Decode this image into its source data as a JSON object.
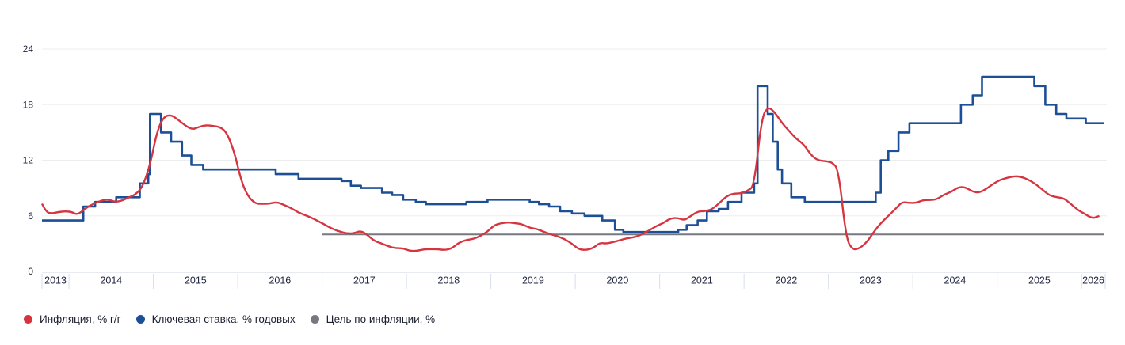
{
  "chart_data": {
    "type": "line",
    "title": "",
    "xlabel": "",
    "ylabel": "",
    "x_domain": [
      2013.68,
      2026.28
    ],
    "ylim": [
      0,
      24
    ],
    "yticks": [
      0,
      6,
      12,
      18,
      24
    ],
    "year_labels": [
      "2013",
      "2014",
      "2015",
      "2016",
      "2017",
      "2018",
      "2019",
      "2020",
      "2021",
      "2022",
      "2023",
      "2024",
      "2025",
      "2026"
    ],
    "grid": "horizontal",
    "legend_position": "bottom-left",
    "series": [
      {
        "name": "Инфляция, % г/г",
        "color": "#d63540",
        "style": "line",
        "points": [
          [
            2013.68,
            7.3
          ],
          [
            2013.73,
            6.4
          ],
          [
            2013.79,
            6.25
          ],
          [
            2013.87,
            6.4
          ],
          [
            2013.96,
            6.5
          ],
          [
            2014.04,
            6.4
          ],
          [
            2014.1,
            6.1
          ],
          [
            2014.21,
            6.9
          ],
          [
            2014.29,
            7.3
          ],
          [
            2014.37,
            7.6
          ],
          [
            2014.46,
            7.8
          ],
          [
            2014.54,
            7.5
          ],
          [
            2014.62,
            7.6
          ],
          [
            2014.71,
            8.0
          ],
          [
            2014.79,
            8.3
          ],
          [
            2014.87,
            9.1
          ],
          [
            2014.96,
            11.4
          ],
          [
            2015.04,
            15.0
          ],
          [
            2015.12,
            16.7
          ],
          [
            2015.21,
            16.9
          ],
          [
            2015.29,
            16.4
          ],
          [
            2015.37,
            15.8
          ],
          [
            2015.46,
            15.3
          ],
          [
            2015.54,
            15.6
          ],
          [
            2015.62,
            15.8
          ],
          [
            2015.71,
            15.7
          ],
          [
            2015.79,
            15.6
          ],
          [
            2015.87,
            15.0
          ],
          [
            2015.96,
            12.9
          ],
          [
            2016.04,
            9.8
          ],
          [
            2016.12,
            8.1
          ],
          [
            2016.21,
            7.3
          ],
          [
            2016.29,
            7.3
          ],
          [
            2016.37,
            7.3
          ],
          [
            2016.46,
            7.5
          ],
          [
            2016.54,
            7.2
          ],
          [
            2016.62,
            6.9
          ],
          [
            2016.71,
            6.4
          ],
          [
            2016.79,
            6.1
          ],
          [
            2016.87,
            5.8
          ],
          [
            2016.96,
            5.4
          ],
          [
            2017.04,
            5.0
          ],
          [
            2017.12,
            4.6
          ],
          [
            2017.21,
            4.3
          ],
          [
            2017.29,
            4.1
          ],
          [
            2017.37,
            4.1
          ],
          [
            2017.46,
            4.4
          ],
          [
            2017.54,
            3.9
          ],
          [
            2017.62,
            3.3
          ],
          [
            2017.71,
            3.0
          ],
          [
            2017.79,
            2.7
          ],
          [
            2017.87,
            2.5
          ],
          [
            2017.96,
            2.5
          ],
          [
            2018.04,
            2.2
          ],
          [
            2018.12,
            2.2
          ],
          [
            2018.21,
            2.4
          ],
          [
            2018.29,
            2.4
          ],
          [
            2018.37,
            2.4
          ],
          [
            2018.46,
            2.3
          ],
          [
            2018.54,
            2.5
          ],
          [
            2018.62,
            3.1
          ],
          [
            2018.71,
            3.4
          ],
          [
            2018.79,
            3.5
          ],
          [
            2018.87,
            3.8
          ],
          [
            2018.96,
            4.3
          ],
          [
            2019.04,
            5.0
          ],
          [
            2019.12,
            5.2
          ],
          [
            2019.21,
            5.3
          ],
          [
            2019.29,
            5.2
          ],
          [
            2019.37,
            5.1
          ],
          [
            2019.46,
            4.7
          ],
          [
            2019.54,
            4.6
          ],
          [
            2019.62,
            4.3
          ],
          [
            2019.71,
            4.0
          ],
          [
            2019.79,
            3.8
          ],
          [
            2019.87,
            3.5
          ],
          [
            2019.96,
            3.0
          ],
          [
            2020.04,
            2.4
          ],
          [
            2020.12,
            2.3
          ],
          [
            2020.21,
            2.5
          ],
          [
            2020.29,
            3.1
          ],
          [
            2020.37,
            3.0
          ],
          [
            2020.46,
            3.2
          ],
          [
            2020.54,
            3.4
          ],
          [
            2020.62,
            3.6
          ],
          [
            2020.71,
            3.7
          ],
          [
            2020.79,
            4.0
          ],
          [
            2020.87,
            4.4
          ],
          [
            2020.96,
            4.9
          ],
          [
            2021.04,
            5.2
          ],
          [
            2021.12,
            5.7
          ],
          [
            2021.21,
            5.8
          ],
          [
            2021.29,
            5.5
          ],
          [
            2021.37,
            6.0
          ],
          [
            2021.46,
            6.5
          ],
          [
            2021.54,
            6.5
          ],
          [
            2021.62,
            6.7
          ],
          [
            2021.71,
            7.4
          ],
          [
            2021.79,
            8.1
          ],
          [
            2021.87,
            8.4
          ],
          [
            2021.96,
            8.4
          ],
          [
            2022.04,
            8.7
          ],
          [
            2022.12,
            9.2
          ],
          [
            2022.21,
            16.7
          ],
          [
            2022.29,
            17.8
          ],
          [
            2022.37,
            17.1
          ],
          [
            2022.46,
            15.9
          ],
          [
            2022.54,
            15.1
          ],
          [
            2022.62,
            14.3
          ],
          [
            2022.71,
            13.7
          ],
          [
            2022.79,
            12.6
          ],
          [
            2022.87,
            12.0
          ],
          [
            2022.96,
            11.9
          ],
          [
            2023.04,
            11.8
          ],
          [
            2023.12,
            11.0
          ],
          [
            2023.21,
            3.5
          ],
          [
            2023.29,
            2.3
          ],
          [
            2023.37,
            2.5
          ],
          [
            2023.46,
            3.2
          ],
          [
            2023.54,
            4.3
          ],
          [
            2023.62,
            5.2
          ],
          [
            2023.71,
            6.0
          ],
          [
            2023.79,
            6.7
          ],
          [
            2023.87,
            7.5
          ],
          [
            2023.96,
            7.4
          ],
          [
            2024.04,
            7.4
          ],
          [
            2024.12,
            7.7
          ],
          [
            2024.21,
            7.7
          ],
          [
            2024.29,
            7.8
          ],
          [
            2024.37,
            8.3
          ],
          [
            2024.46,
            8.6
          ],
          [
            2024.54,
            9.1
          ],
          [
            2024.62,
            9.1
          ],
          [
            2024.71,
            8.6
          ],
          [
            2024.79,
            8.5
          ],
          [
            2024.87,
            8.9
          ],
          [
            2024.96,
            9.5
          ],
          [
            2025.04,
            9.9
          ],
          [
            2025.12,
            10.1
          ],
          [
            2025.21,
            10.3
          ],
          [
            2025.29,
            10.2
          ],
          [
            2025.37,
            9.9
          ],
          [
            2025.46,
            9.4
          ],
          [
            2025.54,
            8.8
          ],
          [
            2025.62,
            8.2
          ],
          [
            2025.71,
            8.0
          ],
          [
            2025.79,
            7.9
          ],
          [
            2025.87,
            7.3
          ],
          [
            2025.96,
            6.6
          ],
          [
            2026.04,
            6.2
          ],
          [
            2026.13,
            5.7
          ],
          [
            2026.21,
            6.0
          ]
        ]
      },
      {
        "name": "Ключевая ставка, % годовых",
        "color": "#1d4f96",
        "style": "step",
        "points": [
          [
            2013.68,
            5.5
          ],
          [
            2014.17,
            7.0
          ],
          [
            2014.31,
            7.5
          ],
          [
            2014.56,
            8.0
          ],
          [
            2014.84,
            9.5
          ],
          [
            2014.94,
            10.5
          ],
          [
            2014.96,
            17.0
          ],
          [
            2015.09,
            15.0
          ],
          [
            2015.21,
            14.0
          ],
          [
            2015.34,
            12.5
          ],
          [
            2015.45,
            11.5
          ],
          [
            2015.59,
            11.0
          ],
          [
            2016.45,
            10.5
          ],
          [
            2016.72,
            10.0
          ],
          [
            2017.23,
            9.75
          ],
          [
            2017.34,
            9.25
          ],
          [
            2017.46,
            9.0
          ],
          [
            2017.71,
            8.5
          ],
          [
            2017.83,
            8.25
          ],
          [
            2017.96,
            7.75
          ],
          [
            2018.11,
            7.5
          ],
          [
            2018.23,
            7.25
          ],
          [
            2018.71,
            7.5
          ],
          [
            2018.96,
            7.75
          ],
          [
            2019.46,
            7.5
          ],
          [
            2019.57,
            7.25
          ],
          [
            2019.69,
            7.0
          ],
          [
            2019.82,
            6.5
          ],
          [
            2019.96,
            6.25
          ],
          [
            2020.11,
            6.0
          ],
          [
            2020.32,
            5.5
          ],
          [
            2020.47,
            4.5
          ],
          [
            2020.57,
            4.25
          ],
          [
            2021.22,
            4.5
          ],
          [
            2021.32,
            5.0
          ],
          [
            2021.45,
            5.5
          ],
          [
            2021.56,
            6.5
          ],
          [
            2021.7,
            6.75
          ],
          [
            2021.81,
            7.5
          ],
          [
            2021.97,
            8.5
          ],
          [
            2022.12,
            9.5
          ],
          [
            2022.16,
            20.0
          ],
          [
            2022.28,
            17.0
          ],
          [
            2022.34,
            14.0
          ],
          [
            2022.4,
            11.0
          ],
          [
            2022.45,
            9.5
          ],
          [
            2022.56,
            8.0
          ],
          [
            2022.72,
            7.5
          ],
          [
            2023.56,
            8.5
          ],
          [
            2023.62,
            12.0
          ],
          [
            2023.71,
            13.0
          ],
          [
            2023.83,
            15.0
          ],
          [
            2023.96,
            16.0
          ],
          [
            2024.57,
            18.0
          ],
          [
            2024.71,
            19.0
          ],
          [
            2024.82,
            21.0
          ],
          [
            2025.44,
            20.0
          ],
          [
            2025.57,
            18.0
          ],
          [
            2025.7,
            17.0
          ],
          [
            2025.82,
            16.5
          ],
          [
            2026.05,
            16.0
          ],
          [
            2026.27,
            16.0
          ]
        ]
      },
      {
        "name": "Цель по инфляции, %",
        "color": "#75787f",
        "style": "line",
        "points": [
          [
            2017.0,
            4.0
          ],
          [
            2026.27,
            4.0
          ]
        ]
      }
    ]
  },
  "ui_colors": {
    "background": "#ffffff",
    "gridline": "#ededed",
    "axis_band_border": "#e8eaf2",
    "axis_band_separator": "#d9ddec",
    "tick_text": "#232842",
    "legend_text": "#1b2030"
  }
}
